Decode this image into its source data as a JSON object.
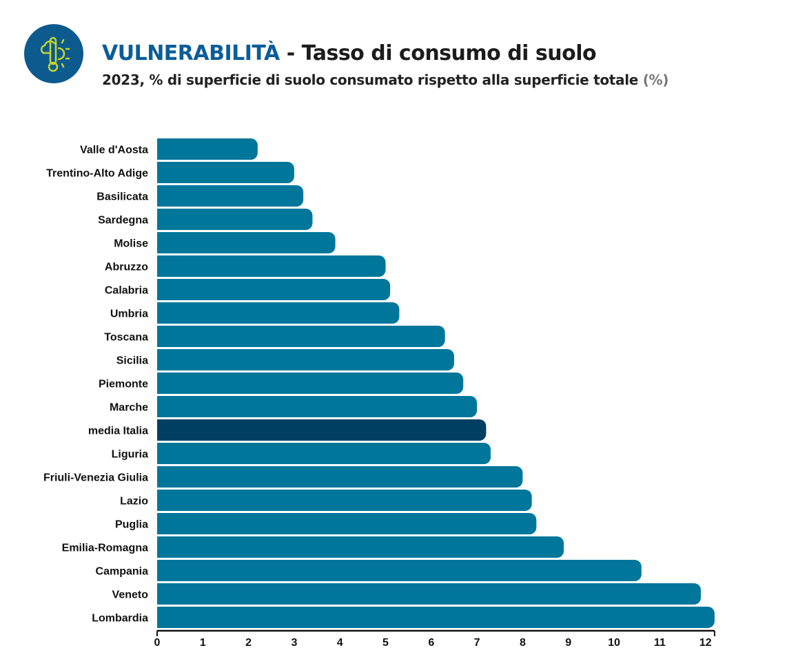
{
  "header": {
    "icon": "climate-thermometer-icon",
    "title_keyword": "VULNERABILITÀ",
    "title_rest": " - Tasso di consumo di suolo",
    "subtitle": "2023, % di superficie di suolo consumato rispetto alla superficie totale ",
    "subtitle_unit": "(%)"
  },
  "colors": {
    "bar": "#00779a",
    "highlight": "#003f62",
    "title": "#0b5d98",
    "logo": "#0d5a8e",
    "logo_icon": "#c8d62a"
  },
  "chart_data": {
    "type": "bar",
    "orientation": "horizontal",
    "categories": [
      "Valle d'Aosta",
      "Trentino-Alto Adige",
      "Basilicata",
      "Sardegna",
      "Molise",
      "Abruzzo",
      "Calabria",
      "Umbria",
      "Toscana",
      "Sicilia",
      "Piemonte",
      "Marche",
      "media Italia",
      "Liguria",
      "Friuli-Venezia Giulia",
      "Lazio",
      "Puglia",
      "Emilia-Romagna",
      "Campania",
      "Veneto",
      "Lombardia"
    ],
    "values": [
      2.2,
      3.0,
      3.2,
      3.4,
      3.9,
      5.0,
      5.1,
      5.3,
      6.3,
      6.5,
      6.7,
      7.0,
      7.2,
      7.3,
      8.0,
      8.2,
      8.3,
      8.9,
      10.6,
      11.9,
      12.2
    ],
    "highlight": "media Italia",
    "xlim": [
      0,
      12.2
    ],
    "xticks": [
      "0",
      "1",
      "2",
      "3",
      "4",
      "5",
      "6",
      "7",
      "8",
      "9",
      "10",
      "11",
      "12"
    ],
    "grid": false,
    "legend": "none"
  }
}
